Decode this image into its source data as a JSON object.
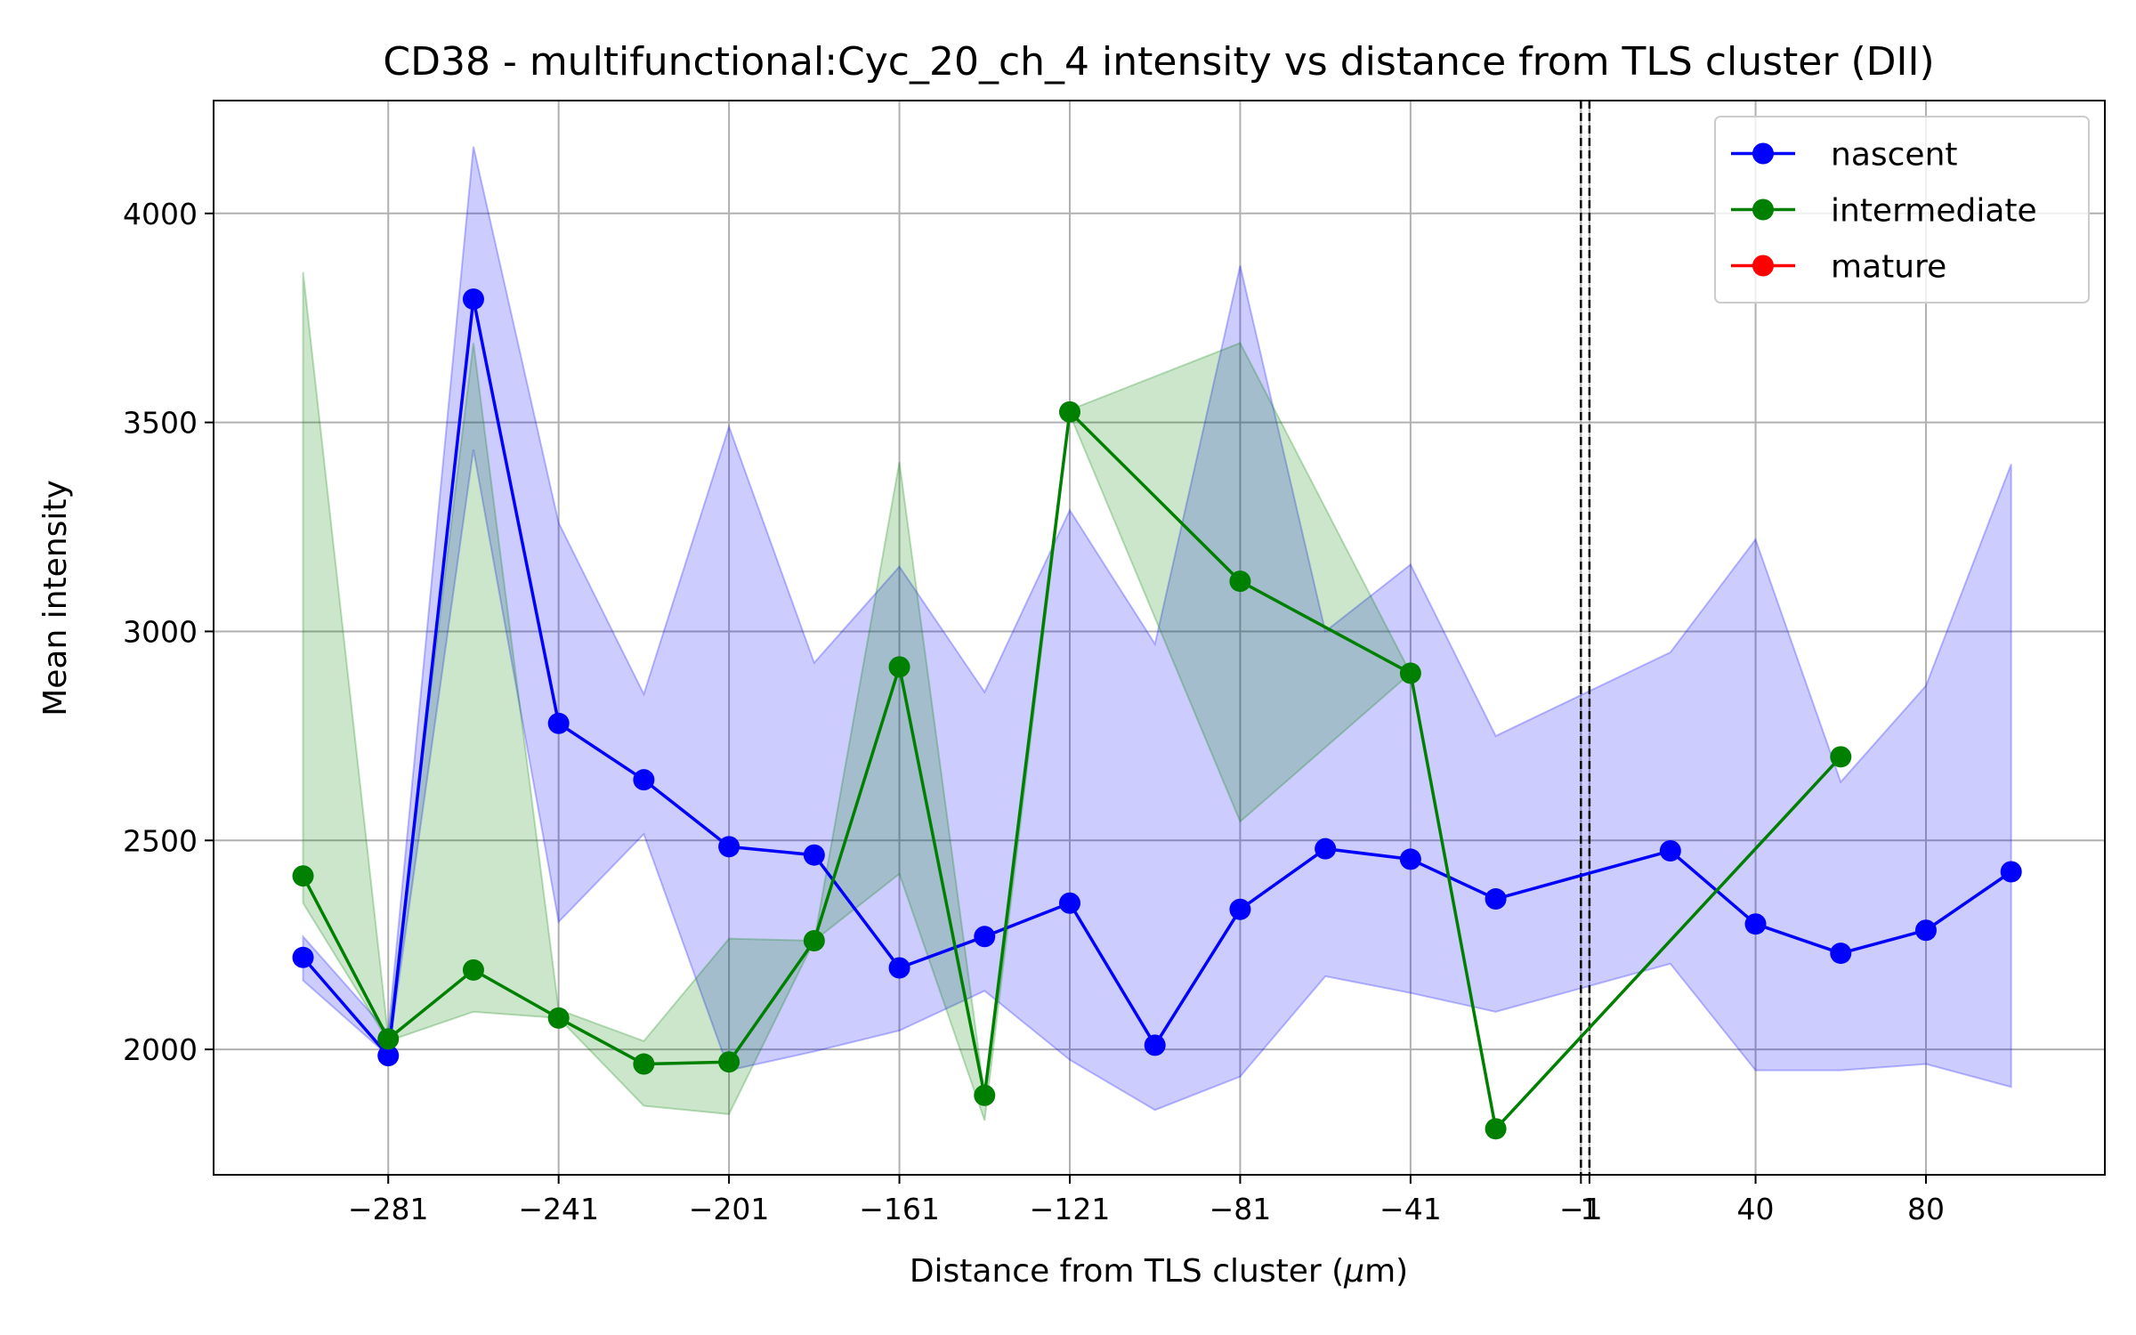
{
  "chart_data": {
    "type": "line",
    "title": "CD38 - multifunctional:Cyc_20_ch_4 intensity vs distance from TLS cluster (DII)",
    "xlabel": "Distance from TLS cluster (μm)",
    "ylabel": "Mean intensity",
    "xlim": [
      -322,
      122
    ],
    "ylim": [
      1700,
      4270
    ],
    "xticks": [
      -281,
      -241,
      -201,
      -161,
      -121,
      -81,
      -41,
      -1,
      1,
      40,
      80
    ],
    "xtick_labels": [
      "−281",
      "−241",
      "−201",
      "−161",
      "−121",
      "−81",
      "−41",
      "−1",
      "1",
      "40",
      "80"
    ],
    "yticks": [
      2000,
      2500,
      3000,
      3500,
      4000
    ],
    "ytick_labels": [
      "2000",
      "2500",
      "3000",
      "3500",
      "4000"
    ],
    "grid": true,
    "legend_position": "top-right",
    "reference_lines": [
      {
        "x": -1,
        "style": "dashed"
      },
      {
        "x": 1,
        "style": "dashed"
      }
    ],
    "series": [
      {
        "name": "nascent",
        "color": "#0000ff",
        "x": [
          -301,
          -281,
          -261,
          -241,
          -221,
          -201,
          -181,
          -161,
          -141,
          -121,
          -101,
          -81,
          -61,
          -41,
          -21,
          20,
          40,
          60,
          80,
          100
        ],
        "y": [
          2220,
          1985,
          3795,
          2780,
          2645,
          2485,
          2465,
          2195,
          2270,
          2350,
          2010,
          2335,
          2480,
          2455,
          2360,
          2475,
          2300,
          2230,
          2285,
          2425
        ],
        "upper": [
          2270,
          2040,
          4160,
          3260,
          2850,
          3490,
          2925,
          3155,
          2855,
          3290,
          2970,
          3875,
          3000,
          3160,
          2750,
          2950,
          3220,
          2640,
          2870,
          3400
        ],
        "lower": [
          2165,
          1985,
          3435,
          2305,
          2515,
          1950,
          1995,
          2045,
          2140,
          1975,
          1855,
          1935,
          2175,
          2135,
          2090,
          2205,
          1950,
          1950,
          1965,
          1910
        ]
      },
      {
        "name": "intermediate",
        "color": "#008000",
        "x": [
          -301,
          -281,
          -261,
          -241,
          -221,
          -201,
          -181,
          -161,
          -141,
          -121,
          -81,
          -41,
          -21,
          60
        ],
        "y": [
          2415,
          2025,
          2190,
          2075,
          1965,
          1970,
          2260,
          2915,
          1890,
          3525,
          3120,
          2900,
          1810,
          2700
        ],
        "upper": [
          3860,
          2030,
          3690,
          2095,
          2020,
          2265,
          2260,
          3405,
          1890,
          3530,
          3690,
          2900,
          1810,
          2700
        ],
        "lower": [
          2350,
          2020,
          2090,
          2075,
          1865,
          1845,
          2260,
          2420,
          1830,
          3520,
          2545,
          2900,
          1810,
          2700
        ]
      },
      {
        "name": "mature",
        "color": "#ff0000",
        "x": [],
        "y": []
      }
    ]
  }
}
